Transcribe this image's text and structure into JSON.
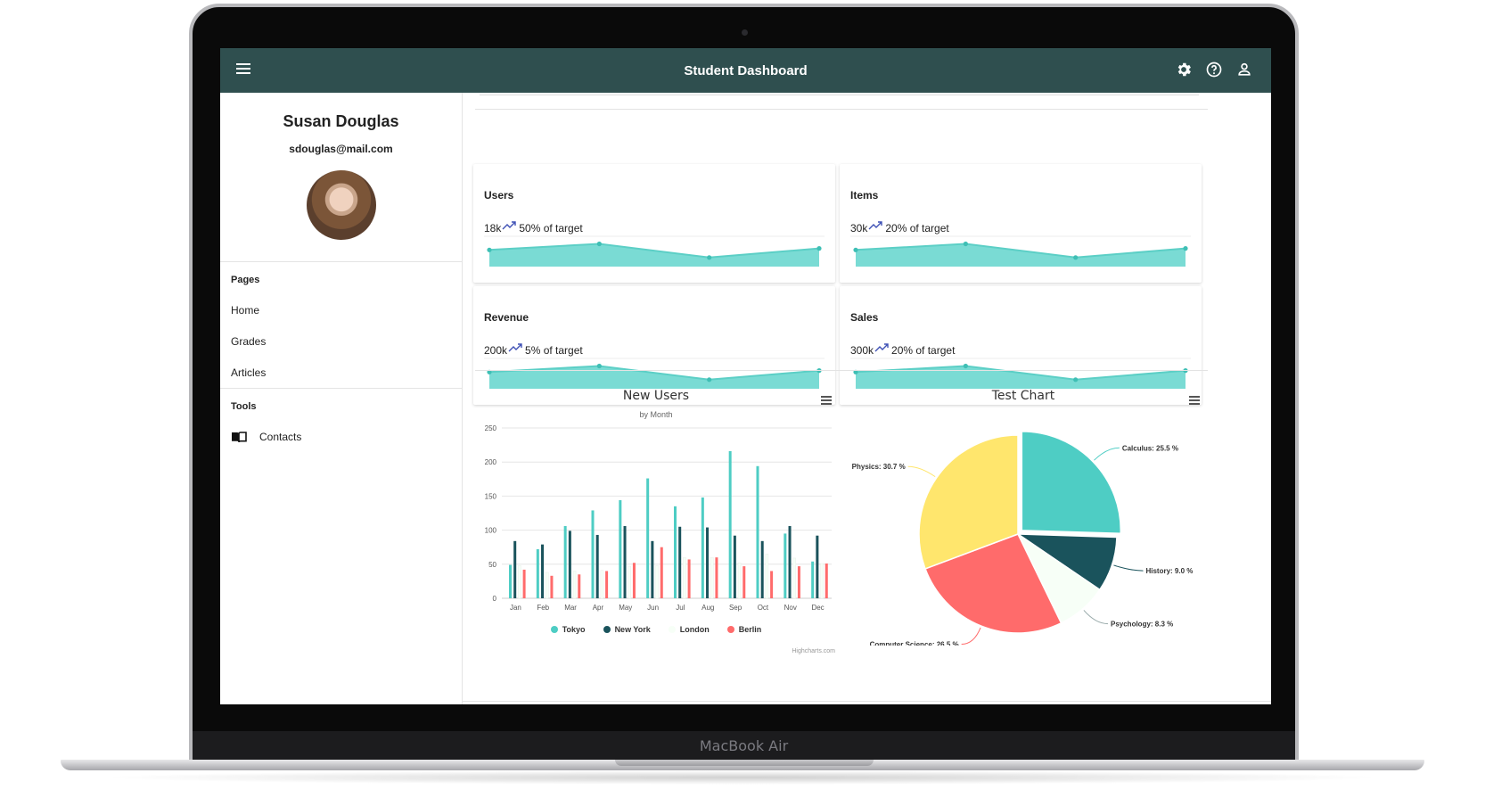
{
  "laptop": {
    "brand": "MacBook Air"
  },
  "header": {
    "title": "Student Dashboard"
  },
  "user": {
    "name": "Susan Douglas",
    "email": "sdouglas@mail.com"
  },
  "sidebar": {
    "pages_title": "Pages",
    "pages": [
      {
        "label": "Home"
      },
      {
        "label": "Grades"
      },
      {
        "label": "Articles"
      }
    ],
    "tools_title": "Tools",
    "tools": [
      {
        "label": "Contacts",
        "icon": "book-open-icon"
      }
    ]
  },
  "stats": [
    {
      "title": "Users",
      "value": "18k",
      "target": "50% of target",
      "trend_icon": "trending-up-icon",
      "spark": [
        0.55,
        0.75,
        0.3,
        0.6
      ]
    },
    {
      "title": "Items",
      "value": "30k",
      "target": "20% of target",
      "trend_icon": "trending-up-icon",
      "spark": [
        0.55,
        0.75,
        0.3,
        0.6
      ]
    },
    {
      "title": "Revenue",
      "value": "200k",
      "target": "5% of target",
      "trend_icon": "trending-up-icon",
      "spark": [
        0.55,
        0.75,
        0.3,
        0.6
      ]
    },
    {
      "title": "Sales",
      "value": "300k",
      "target": "20% of target",
      "trend_icon": "trending-up-icon",
      "spark": [
        0.55,
        0.75,
        0.3,
        0.6
      ]
    }
  ],
  "colors": {
    "header": "#2f4f4f",
    "teal": "#4ecdc4",
    "navy": "#1a535c",
    "white_series": "#f7fff7",
    "red": "#ff6b6b",
    "yellow": "#ffe66d",
    "spark_fill": "#7adbd4"
  },
  "chart_data": [
    {
      "type": "bar",
      "title": "New Users",
      "subtitle": "by Month",
      "categories": [
        "Jan",
        "Feb",
        "Mar",
        "Apr",
        "May",
        "Jun",
        "Jul",
        "Aug",
        "Sep",
        "Oct",
        "Nov",
        "Dec"
      ],
      "ylim": [
        0,
        250
      ],
      "yticks": [
        0,
        50,
        100,
        150,
        200,
        250
      ],
      "series": [
        {
          "name": "Tokyo",
          "color": "#4ecdc4",
          "values": [
            49,
            72,
            106,
            129,
            144,
            176,
            135,
            148,
            216,
            194,
            95,
            54
          ]
        },
        {
          "name": "New York",
          "color": "#1a535c",
          "values": [
            84,
            79,
            99,
            93,
            106,
            84,
            105,
            104,
            92,
            84,
            106,
            92
          ]
        },
        {
          "name": "London",
          "color": "#f7fff7",
          "values": [
            48,
            38,
            40,
            41,
            47,
            48,
            60,
            60,
            52,
            65,
            59,
            51
          ]
        },
        {
          "name": "Berlin",
          "color": "#ff6b6b",
          "values": [
            42,
            33,
            35,
            40,
            52,
            75,
            57,
            60,
            47,
            40,
            47,
            51
          ]
        }
      ],
      "credit": "Highcharts.com",
      "legend": "bottom"
    },
    {
      "type": "pie",
      "title": "Test Chart",
      "slices": [
        {
          "name": "Calculus",
          "value": 25.5,
          "label": "Calculus: 25.5 %",
          "color": "#4ecdc4",
          "sliced": true
        },
        {
          "name": "History",
          "value": 9.0,
          "label": "History: 9.0 %",
          "color": "#1a535c"
        },
        {
          "name": "Psychology",
          "value": 8.3,
          "label": "Psychology: 8.3 %",
          "color": "#f7fff7"
        },
        {
          "name": "Computer Science",
          "value": 26.5,
          "label": "Computer Science: 26.5 %",
          "color": "#ff6b6b"
        },
        {
          "name": "Physics",
          "value": 30.7,
          "label": "Physics: 30.7 %",
          "color": "#ffe66d"
        }
      ]
    }
  ]
}
